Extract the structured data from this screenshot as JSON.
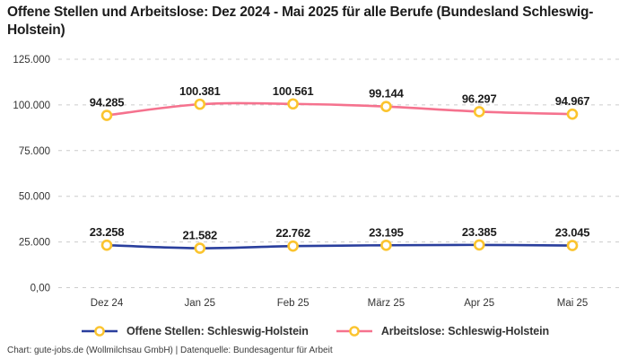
{
  "title": "Offene Stellen und Arbeitslose: Dez 2024 - Mai 2025 für alle Berufe (Bundesland Schleswig-Holstein)",
  "footer": "Chart: gute-jobs.de (Wollmilchsau GmbH) | Datenquelle: Bundesagentur für Arbeit",
  "chart_data": {
    "type": "line",
    "categories": [
      "Dez 24",
      "Jan 25",
      "Feb 25",
      "März 25",
      "Apr 25",
      "Mai 25"
    ],
    "series": [
      {
        "name": "Offene Stellen: Schleswig-Holstein",
        "color": "#2a3f9d",
        "values": [
          23258,
          21582,
          22762,
          23195,
          23385,
          23045
        ],
        "labels": [
          "23.258",
          "21.582",
          "22.762",
          "23.195",
          "23.385",
          "23.045"
        ]
      },
      {
        "name": "Arbeitslose: Schleswig-Holstein",
        "color": "#f5728e",
        "values": [
          94285,
          100381,
          100561,
          99144,
          96297,
          94967
        ],
        "labels": [
          "94.285",
          "100.381",
          "100.561",
          "99.144",
          "96.297",
          "94.967"
        ]
      }
    ],
    "y_ticks": [
      {
        "value": 0,
        "label": "0,00"
      },
      {
        "value": 25000,
        "label": "25.000"
      },
      {
        "value": 50000,
        "label": "50.000"
      },
      {
        "value": 75000,
        "label": "75.000"
      },
      {
        "value": 100000,
        "label": "100.000"
      },
      {
        "value": 125000,
        "label": "125.000"
      }
    ],
    "ylim": [
      0,
      125000
    ],
    "grid": "horizontal-dashed",
    "legend_position": "bottom",
    "colors": {
      "grid": "#cccccc",
      "tick_text": "#333333",
      "data_label": "#1b1b1b",
      "marker_stroke": "#fbc42e",
      "marker_fill": "#ffffff"
    }
  }
}
